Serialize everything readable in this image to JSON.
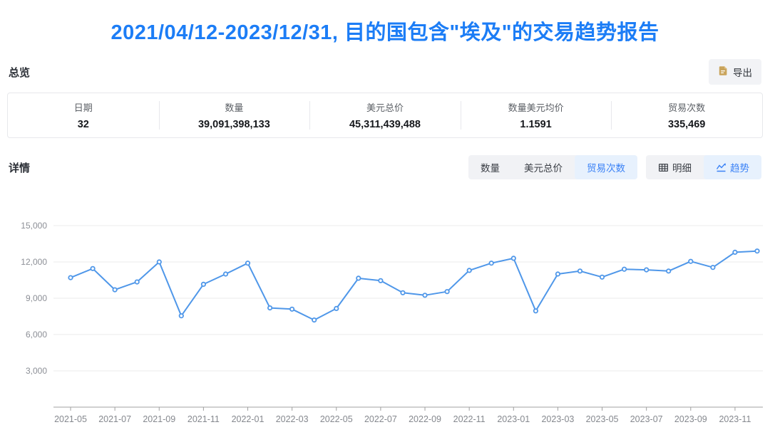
{
  "title": "2021/04/12-2023/12/31, 目的国包含\"埃及\"的交易趋势报告",
  "overview": {
    "section_label": "总览",
    "export": {
      "label": "导出",
      "icon": "export-file-icon",
      "icon_color": "#c9a45c"
    },
    "stats": [
      {
        "label": "日期",
        "value": "32"
      },
      {
        "label": "数量",
        "value": "39,091,398,133"
      },
      {
        "label": "美元总价",
        "value": "45,311,439,488"
      },
      {
        "label": "数量美元均价",
        "value": "1.1591"
      },
      {
        "label": "贸易次数",
        "value": "335,469"
      }
    ]
  },
  "detail": {
    "section_label": "详情",
    "metric_tabs": [
      {
        "label": "数量",
        "active": false
      },
      {
        "label": "美元总价",
        "active": false
      },
      {
        "label": "贸易次数",
        "active": true
      }
    ],
    "view_tabs": [
      {
        "label": "明细",
        "icon": "table-icon",
        "active": false
      },
      {
        "label": "趋势",
        "icon": "trend-icon",
        "active": true
      }
    ]
  },
  "colors": {
    "title_blue": "#1c7df6",
    "tab_active_text": "#3b82f6",
    "tab_active_bg": "#e7f1fd",
    "line": "#4f97e9",
    "grid": "#ebebeb",
    "axis": "#a0a0a0",
    "axis_text": "#8c8f96"
  },
  "chart_data": {
    "type": "line",
    "title": "",
    "xlabel": "",
    "ylabel": "",
    "x": [
      "2021-05",
      "2021-06",
      "2021-07",
      "2021-08",
      "2021-09",
      "2021-10",
      "2021-11",
      "2021-12",
      "2022-01",
      "2022-02",
      "2022-03",
      "2022-04",
      "2022-05",
      "2022-06",
      "2022-07",
      "2022-08",
      "2022-09",
      "2022-10",
      "2022-11",
      "2022-12",
      "2023-01",
      "2023-02",
      "2023-03",
      "2023-04",
      "2023-05",
      "2023-06",
      "2023-07",
      "2023-08",
      "2023-09",
      "2023-10",
      "2023-11",
      "2023-12"
    ],
    "values": [
      10700,
      11450,
      9700,
      10350,
      12000,
      7550,
      10150,
      11000,
      11900,
      8200,
      8100,
      7200,
      8150,
      10650,
      10450,
      9450,
      9250,
      9550,
      11300,
      11900,
      12300,
      7950,
      11000,
      11250,
      10750,
      11400,
      11350,
      11250,
      12050,
      11550,
      12800,
      12900
    ],
    "x_tick_labels": [
      "2021-05",
      "2021-07",
      "2021-09",
      "2021-11",
      "2022-01",
      "2022-03",
      "2022-05",
      "2022-07",
      "2022-09",
      "2022-11",
      "2023-01",
      "2023-03",
      "2023-05",
      "2023-07",
      "2023-09",
      "2023-11"
    ],
    "x_label_every": 2,
    "y_ticks": [
      3000,
      6000,
      9000,
      12000,
      15000
    ],
    "ylim": [
      0,
      15000
    ],
    "grid": true,
    "legend": "none",
    "marker": "circle"
  }
}
